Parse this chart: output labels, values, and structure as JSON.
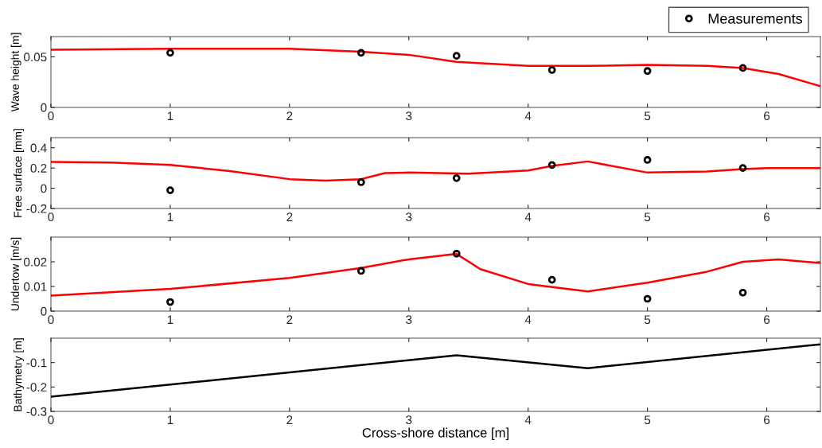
{
  "chart_data": [
    {
      "type": "line",
      "ylabel": "Wave height [m]",
      "xlim": [
        0,
        6.45
      ],
      "xticks": [
        0,
        1,
        2,
        3,
        4,
        5,
        6
      ],
      "ylim": [
        0,
        0.07
      ],
      "yticks": [
        0,
        0.05
      ],
      "legend": "top right",
      "grid": false,
      "series": [
        {
          "color": "#ff0000",
          "marker": "none",
          "x": [
            0,
            1,
            2,
            2.6,
            3,
            3.4,
            4,
            4.5,
            5,
            5.5,
            5.8,
            6.1,
            6.45
          ],
          "values": [
            0.057,
            0.058,
            0.058,
            0.055,
            0.052,
            0.045,
            0.041,
            0.041,
            0.042,
            0.041,
            0.039,
            0.033,
            0.021
          ]
        },
        {
          "type": "scatter",
          "name": "Measurements",
          "color": "#000000",
          "marker": "circle",
          "x": [
            1,
            2.6,
            3.4,
            4.2,
            5,
            5.8
          ],
          "values": [
            0.054,
            0.054,
            0.051,
            0.037,
            0.036,
            0.039
          ]
        }
      ]
    },
    {
      "type": "line",
      "ylabel": "Free surface [mm]",
      "xlim": [
        0,
        6.45
      ],
      "xticks": [
        0,
        1,
        2,
        3,
        4,
        5,
        6
      ],
      "ylim": [
        -0.2,
        0.5
      ],
      "yticks": [
        -0.2,
        0,
        0.2,
        0.4
      ],
      "grid": false,
      "series": [
        {
          "color": "#ff0000",
          "marker": "none",
          "x": [
            0,
            0.5,
            1,
            1.5,
            2,
            2.3,
            2.6,
            2.8,
            3,
            3.5,
            4,
            4.2,
            4.5,
            5,
            5.5,
            5.8,
            6,
            6.45
          ],
          "values": [
            0.26,
            0.255,
            0.23,
            0.17,
            0.09,
            0.075,
            0.09,
            0.15,
            0.155,
            0.145,
            0.175,
            0.22,
            0.265,
            0.155,
            0.165,
            0.19,
            0.2,
            0.2
          ]
        },
        {
          "type": "scatter",
          "color": "#000000",
          "marker": "circle",
          "x": [
            1,
            2.6,
            3.4,
            4.2,
            5,
            5.8
          ],
          "values": [
            -0.02,
            0.06,
            0.1,
            0.23,
            0.28,
            0.2
          ]
        }
      ]
    },
    {
      "type": "line",
      "ylabel": "Undertow [m/s]",
      "xlim": [
        0,
        6.45
      ],
      "xticks": [
        0,
        1,
        2,
        3,
        4,
        5,
        6
      ],
      "ylim": [
        0,
        0.03
      ],
      "yticks": [
        0,
        0.01,
        0.02
      ],
      "grid": false,
      "series": [
        {
          "color": "#ff0000",
          "marker": "none",
          "x": [
            0,
            1,
            2,
            2.6,
            3,
            3.4,
            3.6,
            4,
            4.5,
            5,
            5.5,
            5.8,
            6.1,
            6.45
          ],
          "values": [
            0.0063,
            0.009,
            0.0135,
            0.0175,
            0.021,
            0.0232,
            0.017,
            0.011,
            0.008,
            0.0115,
            0.016,
            0.02,
            0.021,
            0.0195
          ]
        },
        {
          "type": "scatter",
          "color": "#000000",
          "marker": "circle",
          "x": [
            1,
            2.6,
            3.4,
            4.2,
            5,
            5.8
          ],
          "values": [
            0.0037,
            0.0163,
            0.0233,
            0.0127,
            0.005,
            0.0075
          ]
        }
      ]
    },
    {
      "type": "line",
      "ylabel": "Bathymetry [m]",
      "xlabel": "Cross-shore distance [m]",
      "xlim": [
        0,
        6.45
      ],
      "xticks": [
        0,
        1,
        2,
        3,
        4,
        5,
        6
      ],
      "ylim": [
        -0.3,
        0
      ],
      "yticks": [
        -0.3,
        -0.2,
        -0.1
      ],
      "grid": false,
      "series": [
        {
          "color": "#000000",
          "marker": "none",
          "x": [
            0,
            3.4,
            4.5,
            6.45
          ],
          "values": [
            -0.24,
            -0.07,
            -0.123,
            -0.025
          ]
        }
      ]
    }
  ]
}
